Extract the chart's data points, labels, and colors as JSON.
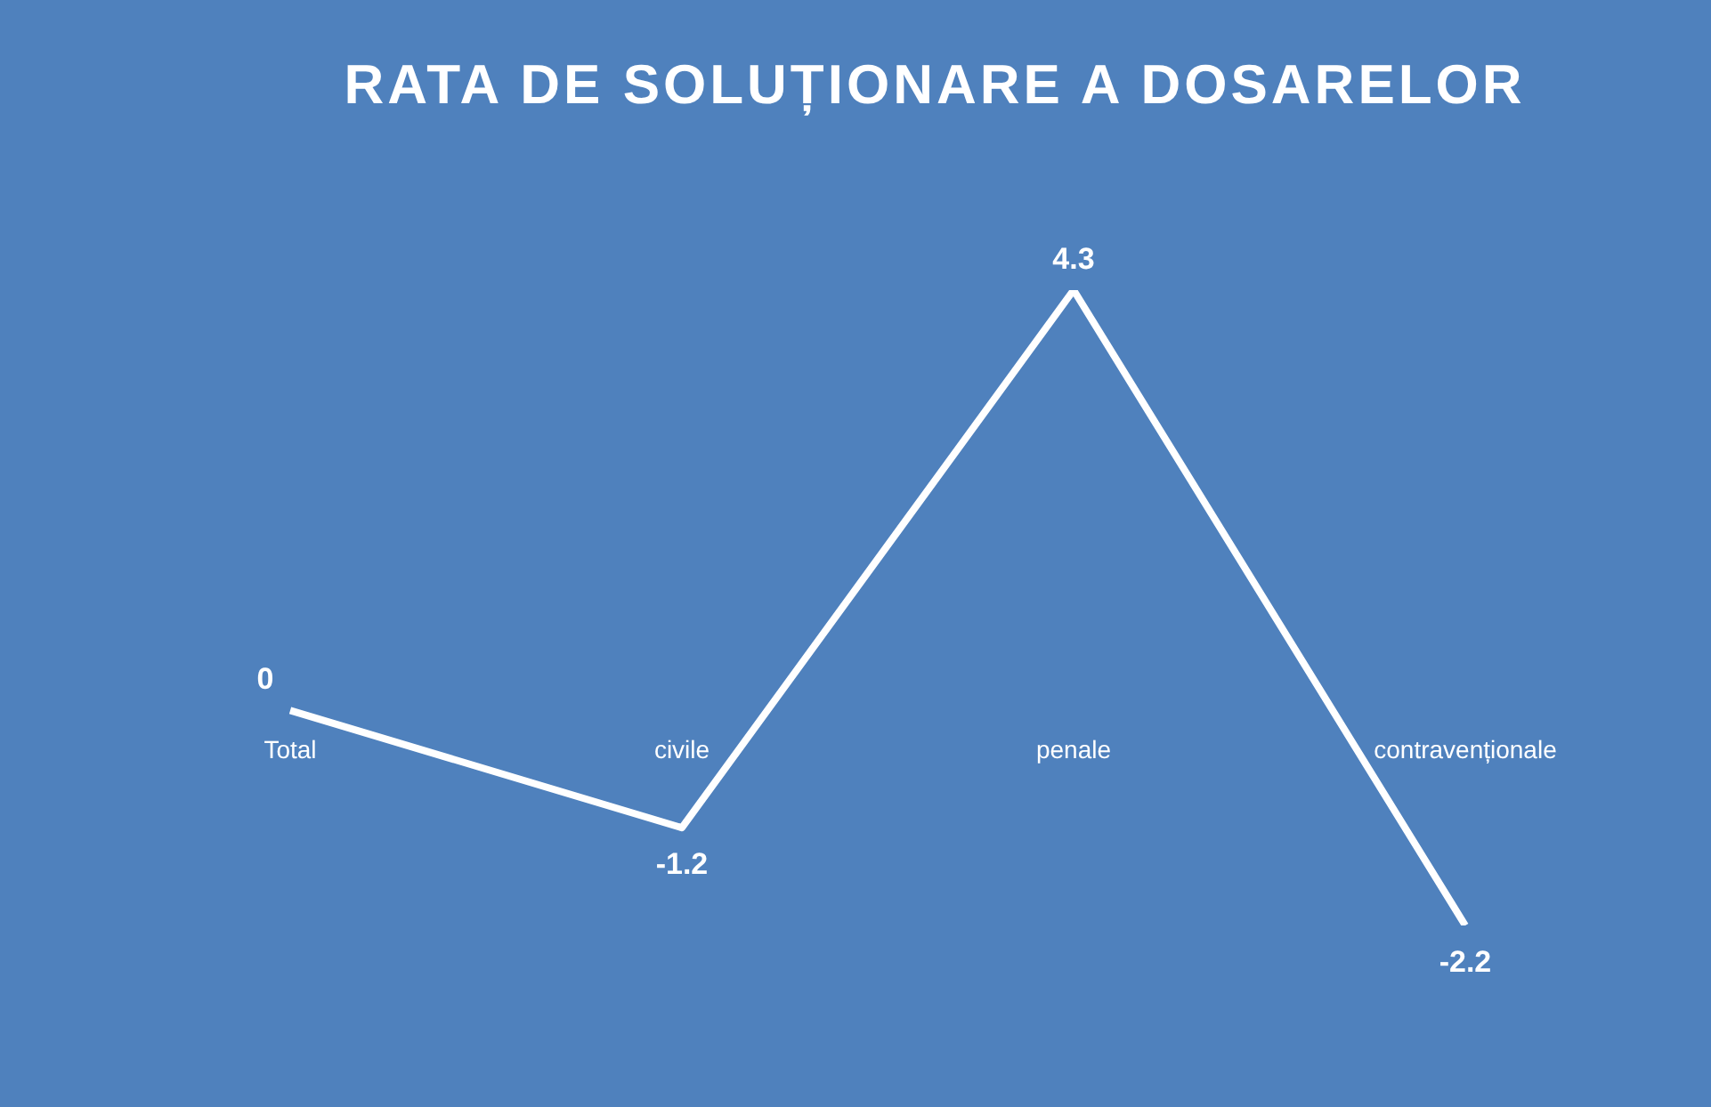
{
  "chart_data": {
    "type": "line",
    "title": "RATA DE SOLUȚIONARE A DOSARELOR",
    "categories": [
      "Total",
      "civile",
      "penale",
      "contravenționale"
    ],
    "series": [
      {
        "color": "#ffffff",
        "values": [
          0,
          -1.2,
          4.3,
          -2.2
        ]
      }
    ],
    "data_labels": true,
    "marker": "none",
    "line_style": "solid"
  }
}
